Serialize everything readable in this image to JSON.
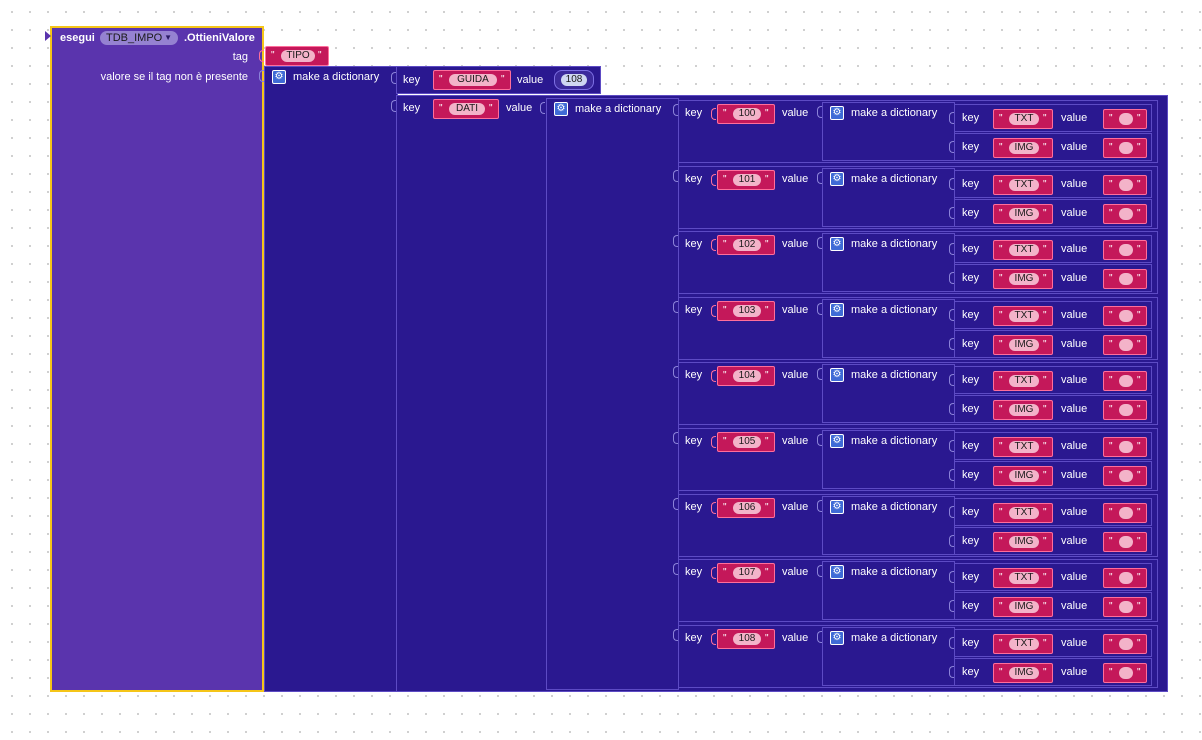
{
  "component_block": {
    "prefix": "esegui",
    "component": "TDB_IMPO",
    "method": ".OttieniValore",
    "tag_label": "tag",
    "valueIfTagNotThere_label": "valore se il tag non è presente"
  },
  "tag_value": "TIPO",
  "outer_dict": {
    "title": "make a dictionary",
    "pairs": [
      {
        "key_label": "key",
        "key": "GUIDA",
        "value_label": "value",
        "value": "108"
      },
      {
        "key_label": "key",
        "key": "DATI",
        "value_label": "value"
      }
    ]
  },
  "dati_dict": {
    "title": "make a dictionary",
    "entries": [
      {
        "key_label": "key",
        "key": "100",
        "value_label": "value",
        "dict_title": "make a dictionary",
        "inner": [
          {
            "key_label": "key",
            "key": "TXT",
            "value_label": "value",
            "value": ""
          },
          {
            "key_label": "key",
            "key": "IMG",
            "value_label": "value",
            "value": ""
          }
        ]
      },
      {
        "key_label": "key",
        "key": "101",
        "value_label": "value",
        "dict_title": "make a dictionary",
        "inner": [
          {
            "key_label": "key",
            "key": "TXT",
            "value_label": "value",
            "value": ""
          },
          {
            "key_label": "key",
            "key": "IMG",
            "value_label": "value",
            "value": ""
          }
        ]
      },
      {
        "key_label": "key",
        "key": "102",
        "value_label": "value",
        "dict_title": "make a dictionary",
        "inner": [
          {
            "key_label": "key",
            "key": "TXT",
            "value_label": "value",
            "value": ""
          },
          {
            "key_label": "key",
            "key": "IMG",
            "value_label": "value",
            "value": ""
          }
        ]
      },
      {
        "key_label": "key",
        "key": "103",
        "value_label": "value",
        "dict_title": "make a dictionary",
        "inner": [
          {
            "key_label": "key",
            "key": "TXT",
            "value_label": "value",
            "value": ""
          },
          {
            "key_label": "key",
            "key": "IMG",
            "value_label": "value",
            "value": ""
          }
        ]
      },
      {
        "key_label": "key",
        "key": "104",
        "value_label": "value",
        "dict_title": "make a dictionary",
        "inner": [
          {
            "key_label": "key",
            "key": "TXT",
            "value_label": "value",
            "value": ""
          },
          {
            "key_label": "key",
            "key": "IMG",
            "value_label": "value",
            "value": ""
          }
        ]
      },
      {
        "key_label": "key",
        "key": "105",
        "value_label": "value",
        "dict_title": "make a dictionary",
        "inner": [
          {
            "key_label": "key",
            "key": "TXT",
            "value_label": "value",
            "value": ""
          },
          {
            "key_label": "key",
            "key": "IMG",
            "value_label": "value",
            "value": ""
          }
        ]
      },
      {
        "key_label": "key",
        "key": "106",
        "value_label": "value",
        "dict_title": "make a dictionary",
        "inner": [
          {
            "key_label": "key",
            "key": "TXT",
            "value_label": "value",
            "value": ""
          },
          {
            "key_label": "key",
            "key": "IMG",
            "value_label": "value",
            "value": ""
          }
        ]
      },
      {
        "key_label": "key",
        "key": "107",
        "value_label": "value",
        "dict_title": "make a dictionary",
        "inner": [
          {
            "key_label": "key",
            "key": "TXT",
            "value_label": "value",
            "value": ""
          },
          {
            "key_label": "key",
            "key": "IMG",
            "value_label": "value",
            "value": ""
          }
        ]
      },
      {
        "key_label": "key",
        "key": "108",
        "value_label": "value",
        "dict_title": "make a dictionary",
        "inner": [
          {
            "key_label": "key",
            "key": "TXT",
            "value_label": "value",
            "value": ""
          },
          {
            "key_label": "key",
            "key": "IMG",
            "value_label": "value",
            "value": ""
          }
        ]
      }
    ]
  },
  "icons": {
    "mutator": "gear-icon",
    "dropdown": "caret-down-icon"
  },
  "colors": {
    "component_block": "#5a34ad",
    "selection_outline": "#f5c518",
    "dictionary_block": "#2a1890",
    "text_block": "#c4185a",
    "number_block": "#3c2a9c"
  }
}
